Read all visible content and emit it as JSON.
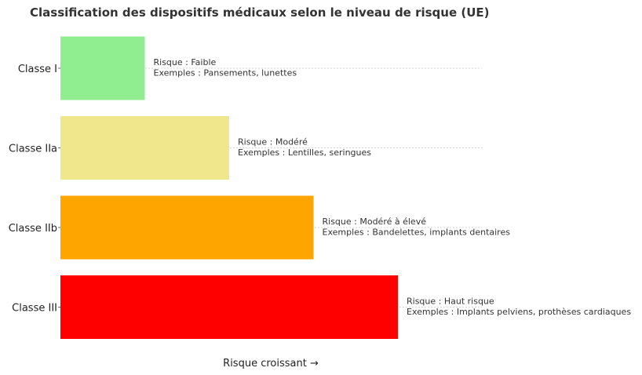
{
  "chart_data": {
    "type": "bar",
    "orientation": "horizontal",
    "title": "Classification des dispositifs médicaux selon le niveau de risque (UE)",
    "xlabel": "Risque croissant →",
    "ylabel": "",
    "categories": [
      "Classe I",
      "Classe IIa",
      "Classe IIb",
      "Classe III"
    ],
    "values": [
      1,
      2,
      3,
      4
    ],
    "colors": [
      "#90ee90",
      "#f0e68c",
      "#ffa500",
      "#ff0000"
    ],
    "xlim": [
      0,
      5
    ],
    "grid": "horizontal dashed",
    "legend": "none",
    "annotations": [
      {
        "risk": "Risque : Faible",
        "examples": "Exemples : Pansements, lunettes"
      },
      {
        "risk": "Risque : Modéré",
        "examples": "Exemples : Lentilles, seringues"
      },
      {
        "risk": "Risque : Modéré à élevé",
        "examples": "Exemples : Bandelettes, implants dentaires"
      },
      {
        "risk": "Risque : Haut risque",
        "examples": "Exemples : Implants pelviens, prothèses cardiaques"
      }
    ]
  }
}
